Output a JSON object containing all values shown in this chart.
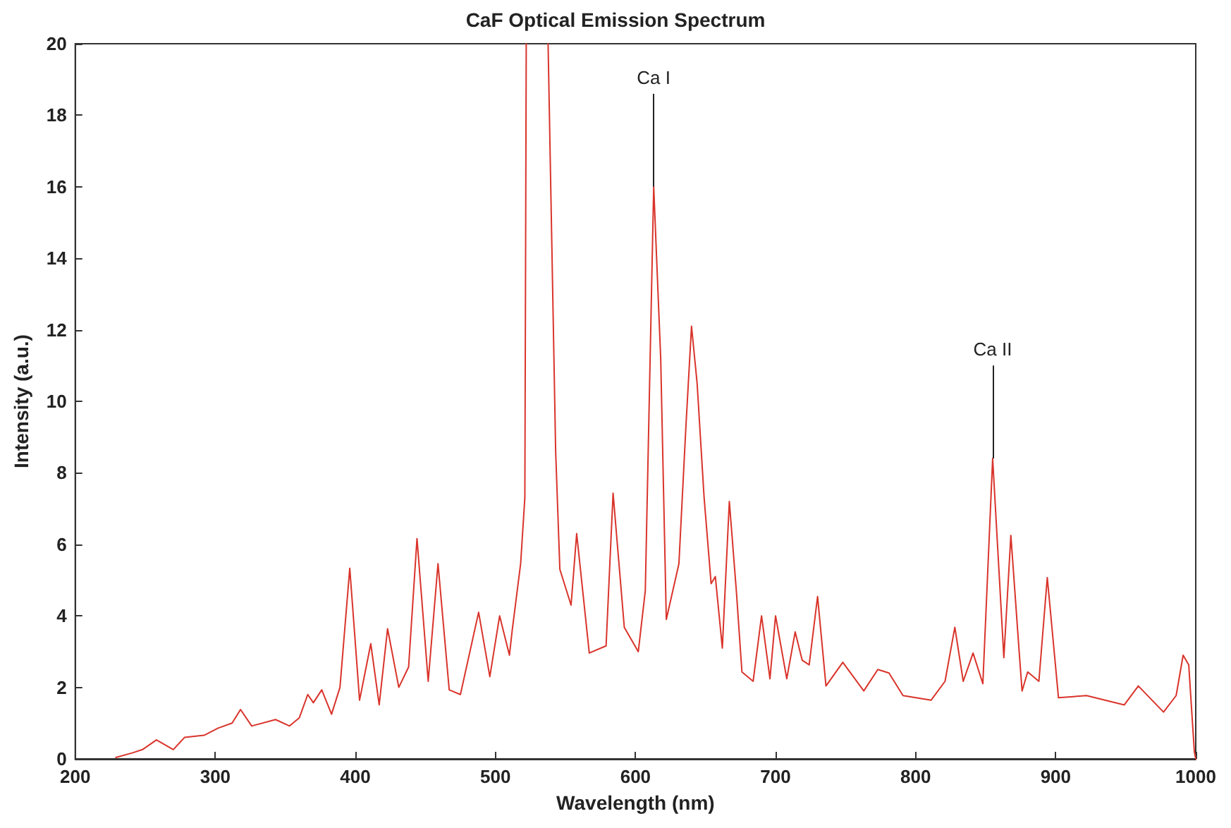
{
  "chart_data": {
    "type": "line",
    "title": "CaF Optical Emission Spectrum",
    "xlabel": "Wavelength (nm)",
    "ylabel": "Intensity (a.u.)",
    "annotations": [
      {
        "text": "Ca I",
        "x": 613,
        "y": 16.0
      },
      {
        "text": "Ca II",
        "x": 855,
        "y": 8.4
      }
    ],
    "xlim": [
      200,
      1000
    ],
    "xticks": [
      200,
      300,
      400,
      500,
      600,
      700,
      800,
      900,
      1000
    ],
    "ylim": [
      0,
      20
    ],
    "yticks": [
      0,
      2,
      4,
      6,
      8,
      10,
      12,
      14,
      16,
      18,
      20
    ],
    "grid": false,
    "marker": "none",
    "line_style": "solid",
    "series": [
      {
        "color": "#d9342b",
        "x": [
          229,
          241,
          248,
          258,
          270,
          278,
          292,
          302,
          312,
          318,
          326,
          343,
          353,
          360,
          366,
          370,
          376,
          383,
          389,
          396,
          403,
          411,
          417,
          423,
          431,
          438,
          444,
          452,
          459,
          467,
          475,
          488,
          496,
          503,
          510,
          512,
          518,
          521,
          522,
          530,
          537.6,
          543,
          546,
          554,
          558,
          567,
          579,
          584,
          592,
          602,
          607,
          613,
          618,
          622,
          631,
          636,
          640,
          644,
          649,
          654,
          657,
          662,
          667,
          672,
          676,
          684,
          690,
          696,
          700,
          708,
          714,
          719,
          724,
          730,
          736,
          748,
          763,
          773,
          781,
          791,
          811,
          821,
          828,
          834,
          841,
          848,
          855,
          863,
          868,
          874,
          876,
          880,
          888,
          894,
          902,
          922,
          949,
          959,
          977,
          986,
          991,
          995,
          999,
          1000
        ],
        "values": [
          0.04,
          0.17,
          0.26,
          0.53,
          0.26,
          0.6,
          0.66,
          0.86,
          1.0,
          1.38,
          0.92,
          1.1,
          0.92,
          1.15,
          1.8,
          1.57,
          1.93,
          1.25,
          2.0,
          5.33,
          1.64,
          3.22,
          1.51,
          3.64,
          2.0,
          2.57,
          6.16,
          2.17,
          5.46,
          1.93,
          1.8,
          4.1,
          2.3,
          4.0,
          2.9,
          3.6,
          5.46,
          7.3,
          20,
          null,
          20,
          8.6,
          5.3,
          4.3,
          6.3,
          2.96,
          3.16,
          7.43,
          3.68,
          3.0,
          4.7,
          16.0,
          11.2,
          3.9,
          5.46,
          9.3,
          12.1,
          10.5,
          7.3,
          4.9,
          5.1,
          3.1,
          7.2,
          4.7,
          2.43,
          2.17,
          4.0,
          2.24,
          4.0,
          2.24,
          3.55,
          2.76,
          2.63,
          4.54,
          2.04,
          2.7,
          1.9,
          2.5,
          2.4,
          1.77,
          1.64,
          2.17,
          3.68,
          2.17,
          2.96,
          2.1,
          8.4,
          2.83,
          6.25,
          2.96,
          1.9,
          2.43,
          2.17,
          5.07,
          1.71,
          1.77,
          1.51,
          2.04,
          1.31,
          1.77,
          2.9,
          2.63,
          0.2,
          0
        ]
      }
    ]
  }
}
